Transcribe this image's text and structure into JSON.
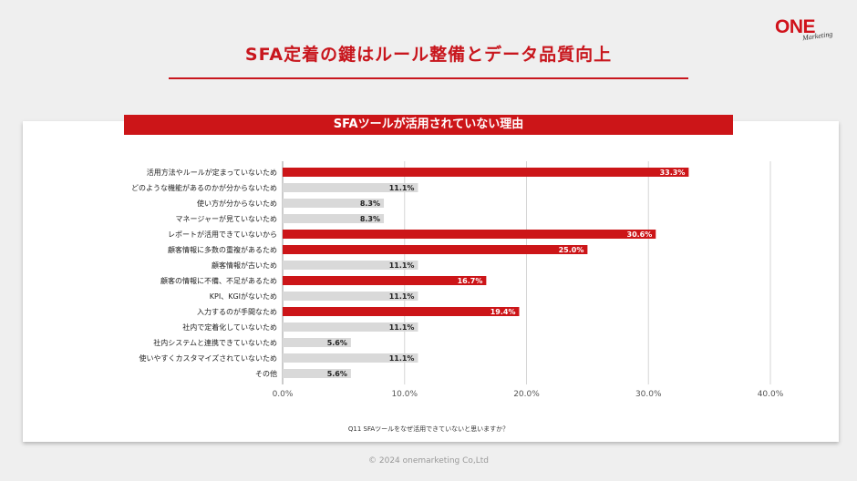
{
  "brand": {
    "logo_main": "ONE",
    "logo_sub": "Marketing"
  },
  "header": {
    "title": "SFA定着の鍵はルール整備とデータ品質向上"
  },
  "chart_data": {
    "type": "bar",
    "orientation": "horizontal",
    "title": "SFAツールが活用されていない理由",
    "categories": [
      "活用方法やルールが定まっていないため",
      "どのような機能があるのかが分からないため",
      "使い方が分からないため",
      "マネージャーが見ていないため",
      "レポートが活用できていないから",
      "顧客情報に多数の重複があるため",
      "顧客情報が古いため",
      "顧客の情報に不備、不足があるため",
      "KPI、KGIがないため",
      "入力するのが手間なため",
      "社内で定着化していないため",
      "社内システムと連携できていないため",
      "使いやすくカスタマイズされていないため",
      "その他"
    ],
    "values": [
      33.3,
      11.1,
      8.3,
      8.3,
      30.6,
      25.0,
      11.1,
      16.7,
      11.1,
      19.4,
      11.1,
      5.6,
      11.1,
      5.6
    ],
    "value_labels": [
      "33.3%",
      "11.1%",
      "8.3%",
      "8.3%",
      "30.6%",
      "25.0%",
      "11.1%",
      "16.7%",
      "11.1%",
      "19.4%",
      "11.1%",
      "5.6%",
      "11.1%",
      "5.6%"
    ],
    "highlighted": [
      true,
      false,
      false,
      false,
      true,
      true,
      false,
      true,
      false,
      true,
      false,
      false,
      false,
      false
    ],
    "xlim": [
      0,
      40
    ],
    "xticks": [
      "0.0%",
      "10.0%",
      "20.0%",
      "30.0%",
      "40.0%"
    ],
    "grid": true,
    "colors": {
      "highlight": "#cc1518",
      "normal": "#d9d9d9",
      "label_on_highlight": "#ffffff",
      "label_on_normal": "#222222"
    }
  },
  "footnote": "Q11 SFAツールをなぜ活用できていないと思いますか？",
  "footer": {
    "copyright": "© 2024 onemarketing Co,Ltd"
  }
}
